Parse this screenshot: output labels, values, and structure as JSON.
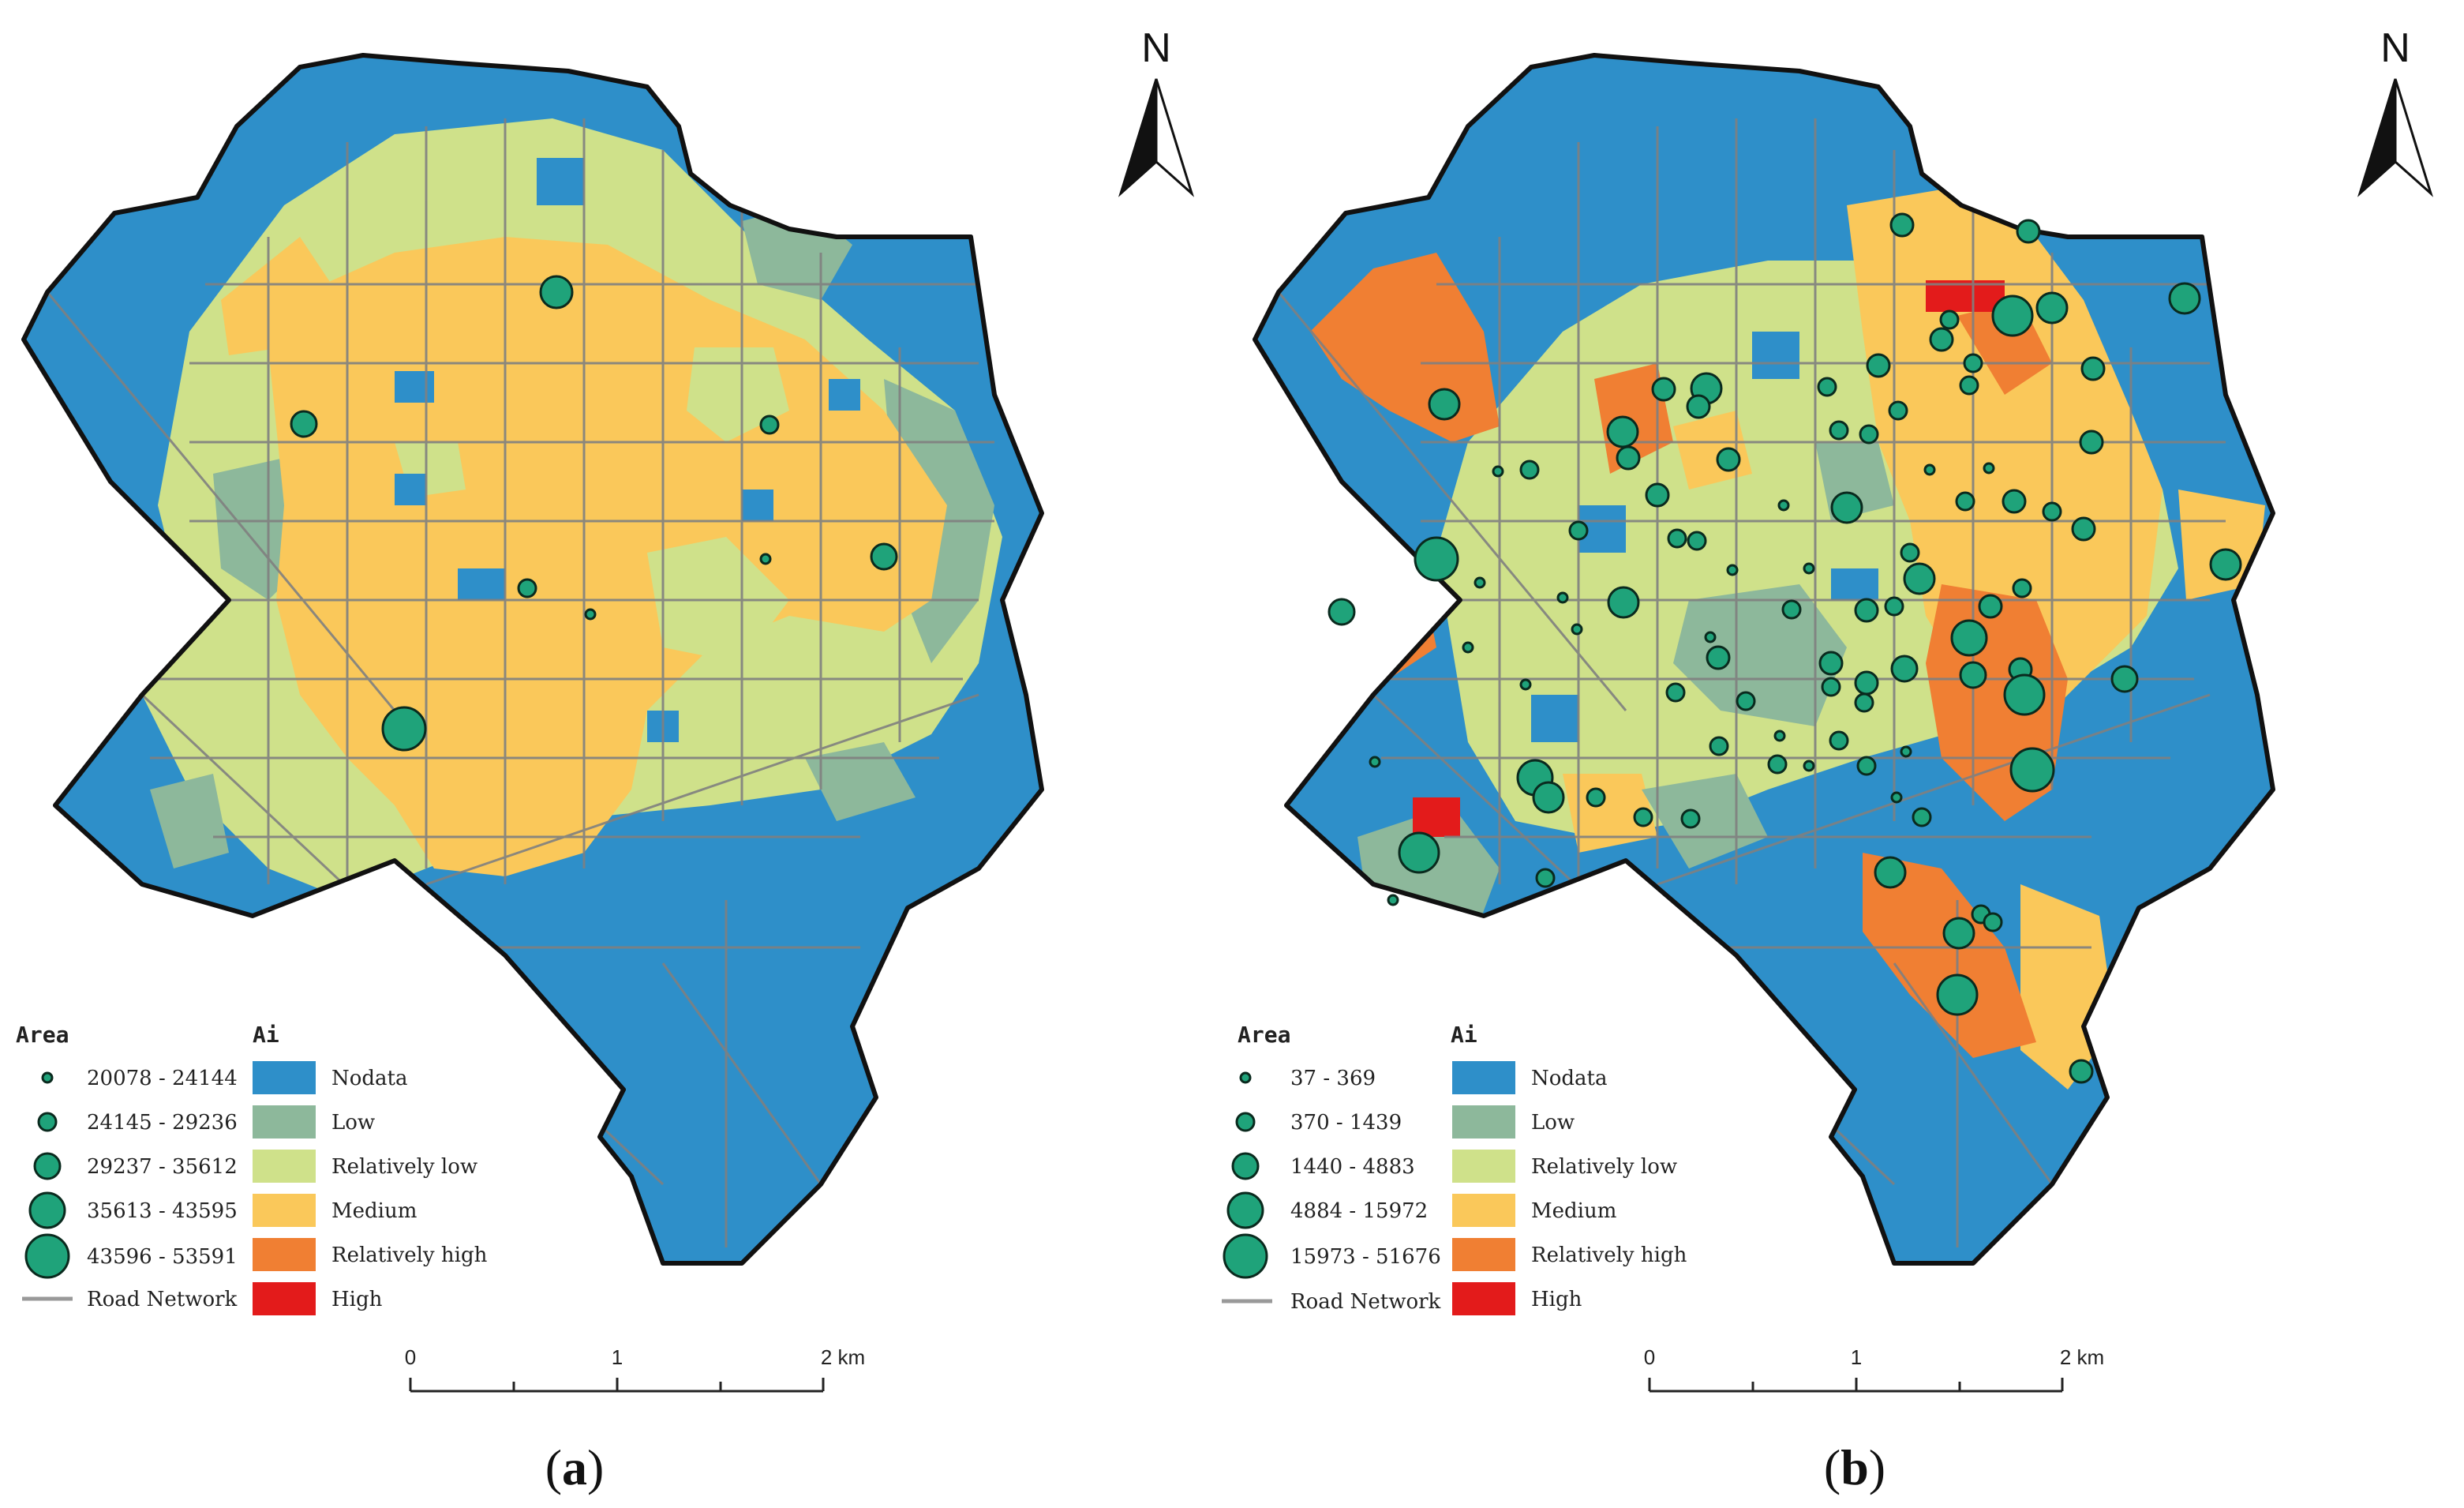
{
  "colors": {
    "nodata": "#2E8FC9",
    "low": "#8DB89B",
    "relatively_low": "#CFE18A",
    "medium": "#FAC85A",
    "relatively_high": "#F07F33",
    "high": "#E31B1B",
    "circle_fill": "#1FA37A",
    "road": "#808080",
    "boundary": "#111111"
  },
  "panels": [
    {
      "caption_open": "(",
      "caption_letter": "a",
      "caption_close": ")",
      "north_label": "N",
      "area_title": "Area",
      "ai_title": "Ai",
      "area_classes": [
        "20078 - 24144",
        "24145 - 29236",
        "29237 - 35612",
        "35613 - 43595",
        "43596 - 53591"
      ],
      "road_label": "Road Network",
      "ai_classes": [
        "Nodata",
        "Low",
        "Relatively low",
        "Medium",
        "Relatively high",
        "High"
      ],
      "scale_labels": [
        "0",
        "1",
        "2 km"
      ]
    },
    {
      "caption_open": "(",
      "caption_letter": "b",
      "caption_close": ")",
      "north_label": "N",
      "area_title": "Area",
      "ai_title": "Ai",
      "area_classes": [
        "37 - 369",
        "370 - 1439",
        "1440 - 4883",
        "4884 - 15972",
        "15973 - 51676"
      ],
      "road_label": "Road Network",
      "ai_classes": [
        "Nodata",
        "Low",
        "Relatively low",
        "Medium",
        "Relatively high",
        "High"
      ],
      "scale_labels": [
        "0",
        "1",
        "2 km"
      ]
    }
  ]
}
